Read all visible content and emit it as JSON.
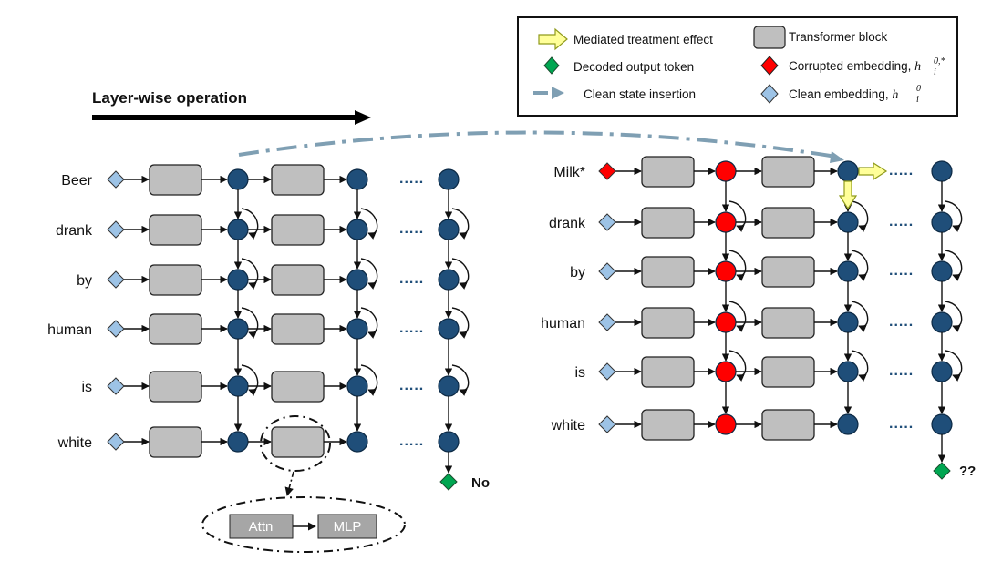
{
  "title": "Layer-wise operation",
  "left_tokens": [
    "Beer",
    "drank",
    "by",
    "human",
    "is",
    "white"
  ],
  "right_tokens": [
    "Milk*",
    "drank",
    "by",
    "human",
    "is",
    "white"
  ],
  "left_output": "No",
  "right_output": "??",
  "inset": {
    "attn": "Attn",
    "mlp": "MLP"
  },
  "legend": {
    "mediated": "Mediated treatment effect",
    "decoded": "Decoded output token",
    "clean_insertion": "Clean state insertion",
    "transformer": "Transformer block",
    "corrupted": "Corrupted embedding, ",
    "clean_emb": "Clean embedding, ",
    "h": "h",
    "i": "i",
    "sup_corrupted": "0,*",
    "sup_clean": "0"
  },
  "colors": {
    "node": "#1f4e79",
    "corrupted": "#ff0000",
    "clean_diamond": "#9dc3e6",
    "decoded": "#00a651",
    "block": "#bfbfbf",
    "mediated": "#ffff99",
    "insertion": "#7f9fb3"
  },
  "ellipsis": "....."
}
